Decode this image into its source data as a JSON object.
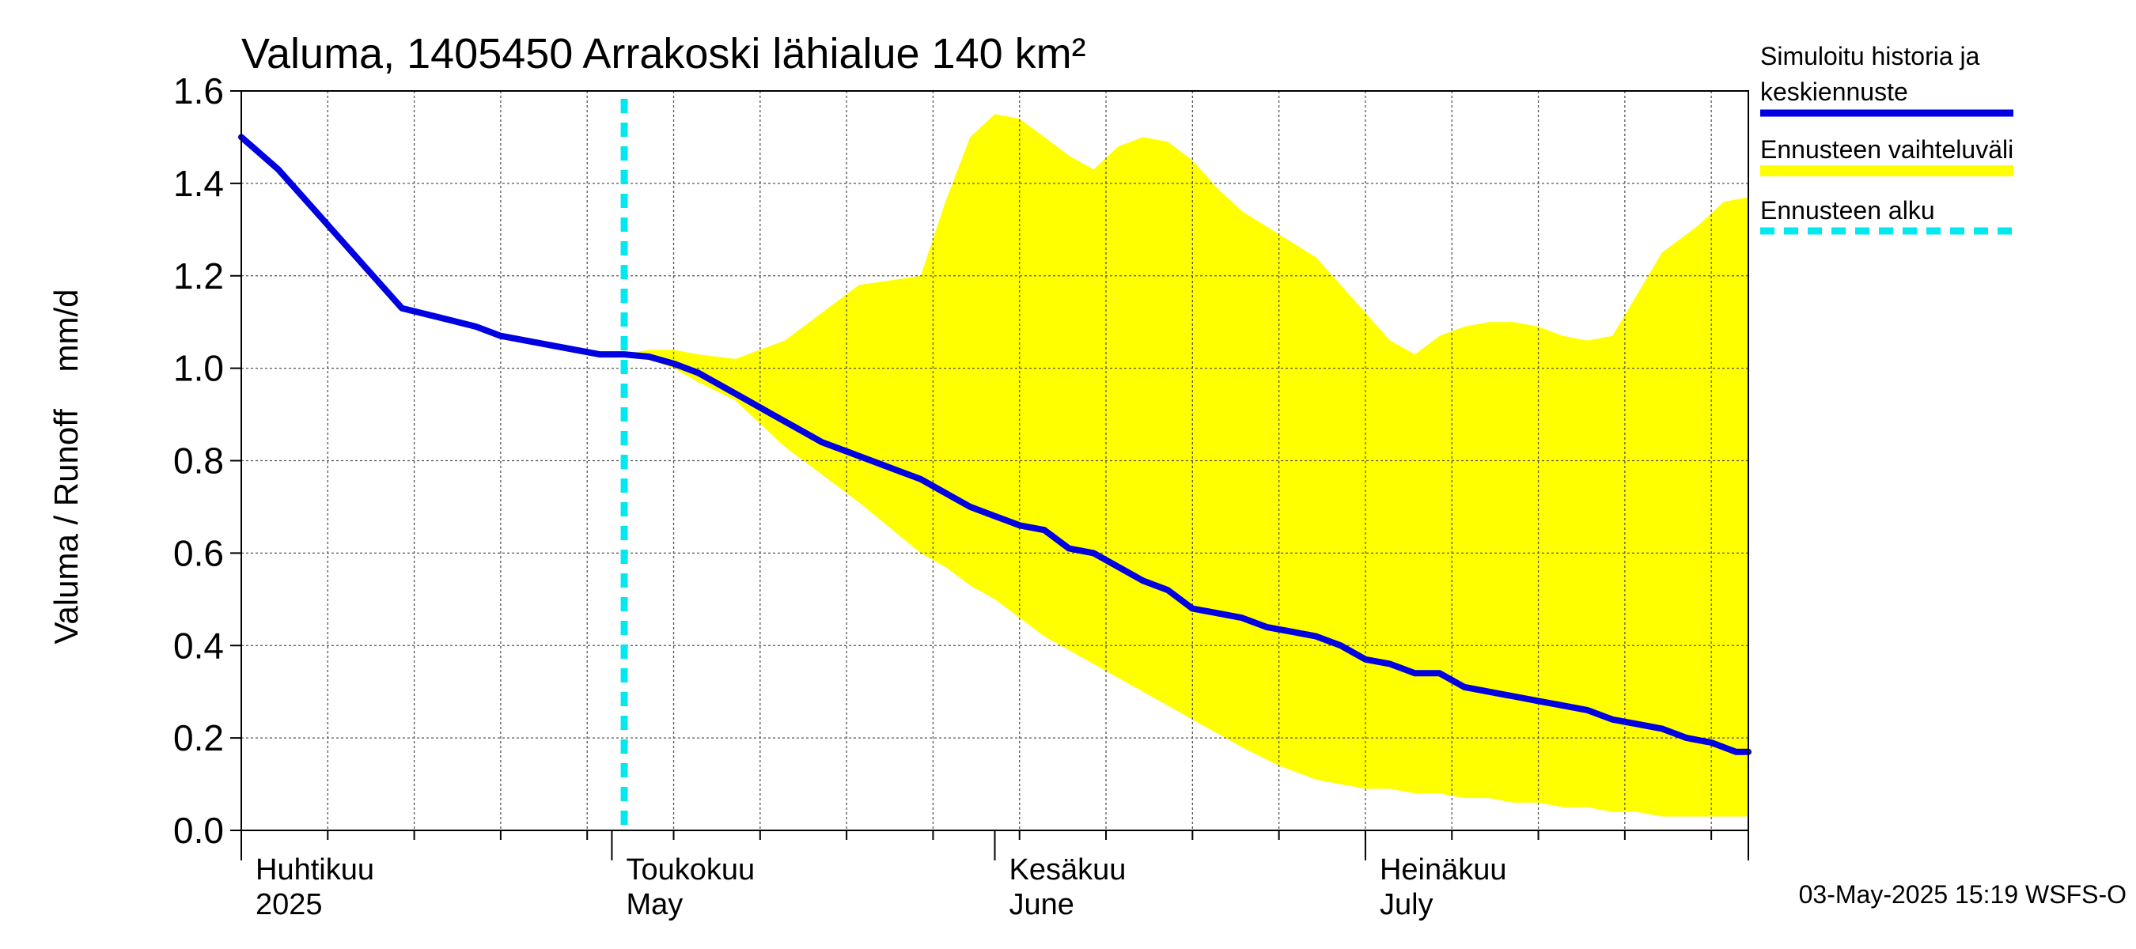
{
  "chart_data": {
    "type": "line",
    "title": "Valuma, 1405450 Arrakoski lähialue 140 km²",
    "ylabel": "Valuma / Runoff    mm/d",
    "ylim": [
      0,
      1.6
    ],
    "yticks": [
      "0.0",
      "0.2",
      "0.4",
      "0.6",
      "0.8",
      "1.0",
      "1.2",
      "1.4",
      "1.6"
    ],
    "x_range_days": [
      0,
      122
    ],
    "months": [
      {
        "name_fi": "Huhtikuu",
        "name_en": "2025",
        "start_day": 0
      },
      {
        "name_fi": "Toukokuu",
        "name_en": "May",
        "start_day": 30
      },
      {
        "name_fi": "Kesäkuu",
        "name_en": "June",
        "start_day": 61
      },
      {
        "name_fi": "Heinäkuu",
        "name_en": "July",
        "start_day": 91
      }
    ],
    "grid": true,
    "forecast_start_day": 31,
    "series": [
      {
        "name": "Simuloitu historia ja keskiennuste",
        "color": "#0000e0",
        "x": [
          0,
          3,
          6,
          10,
          13,
          16,
          19,
          21,
          25,
          29,
          31,
          33,
          35,
          37,
          39,
          41,
          43,
          45,
          47,
          49,
          51,
          53,
          55,
          57,
          59,
          61,
          63,
          65,
          67,
          69,
          71,
          73,
          75,
          77,
          79,
          81,
          83,
          85,
          87,
          89,
          91,
          93,
          95,
          97,
          99,
          101,
          103,
          105,
          107,
          109,
          111,
          113,
          115,
          117,
          119,
          121,
          122
        ],
        "values": [
          1.5,
          1.43,
          1.34,
          1.22,
          1.13,
          1.11,
          1.09,
          1.07,
          1.05,
          1.03,
          1.03,
          1.025,
          1.01,
          0.99,
          0.96,
          0.93,
          0.9,
          0.87,
          0.84,
          0.82,
          0.8,
          0.78,
          0.76,
          0.73,
          0.7,
          0.68,
          0.66,
          0.65,
          0.61,
          0.6,
          0.57,
          0.54,
          0.52,
          0.48,
          0.47,
          0.46,
          0.44,
          0.43,
          0.42,
          0.4,
          0.37,
          0.36,
          0.34,
          0.34,
          0.31,
          0.3,
          0.29,
          0.28,
          0.27,
          0.26,
          0.24,
          0.23,
          0.22,
          0.2,
          0.19,
          0.17,
          0.17
        ]
      },
      {
        "name": "Ennusteen vaihteluväli",
        "color": "#ffff00",
        "x": [
          31,
          33,
          35,
          37,
          40,
          42,
          44,
          47,
          50,
          55,
          57,
          59,
          61,
          63,
          65,
          67,
          69,
          71,
          73,
          75,
          77,
          79,
          81,
          84,
          87,
          89,
          91,
          93,
          95,
          97,
          99,
          101,
          103,
          105,
          107,
          109,
          111,
          113,
          115,
          118,
          120,
          122
        ],
        "upper": [
          1.03,
          1.04,
          1.04,
          1.03,
          1.02,
          1.04,
          1.06,
          1.12,
          1.18,
          1.2,
          1.36,
          1.5,
          1.55,
          1.54,
          1.5,
          1.46,
          1.43,
          1.48,
          1.5,
          1.49,
          1.45,
          1.39,
          1.34,
          1.29,
          1.24,
          1.18,
          1.12,
          1.06,
          1.03,
          1.07,
          1.09,
          1.1,
          1.1,
          1.09,
          1.07,
          1.06,
          1.07,
          1.16,
          1.25,
          1.31,
          1.36,
          1.37
        ],
        "lower": [
          1.03,
          1.02,
          1.0,
          0.97,
          0.93,
          0.88,
          0.83,
          0.77,
          0.71,
          0.6,
          0.57,
          0.53,
          0.5,
          0.46,
          0.42,
          0.39,
          0.36,
          0.33,
          0.3,
          0.27,
          0.24,
          0.21,
          0.18,
          0.14,
          0.11,
          0.1,
          0.09,
          0.09,
          0.08,
          0.08,
          0.07,
          0.07,
          0.06,
          0.06,
          0.05,
          0.05,
          0.04,
          0.04,
          0.03,
          0.03,
          0.03,
          0.03
        ]
      }
    ],
    "legend": [
      {
        "label_line1": "Simuloitu historia ja",
        "label_line2": "keskiennuste",
        "color": "#0000e0",
        "style": "solid"
      },
      {
        "label_line1": "Ennusteen vaihteluväli",
        "label_line2": "",
        "color": "#ffff00",
        "style": "solid"
      },
      {
        "label_line1": "Ennusteen alku",
        "label_line2": "",
        "color": "#00e8f0",
        "style": "dashed"
      }
    ],
    "footer": "03-May-2025 15:19 WSFS-O"
  }
}
